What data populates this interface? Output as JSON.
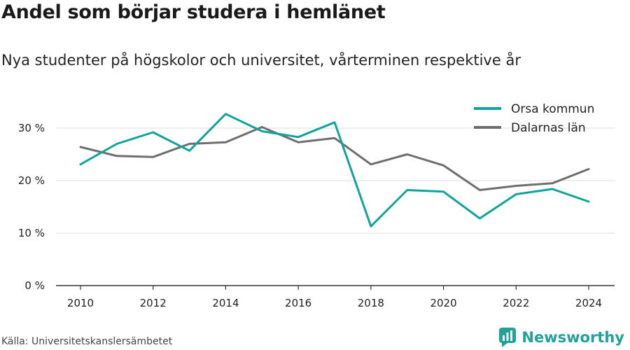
{
  "title": "Andel som börjar studera i hemlänet",
  "subtitle": "Nya studenter på högskolor och universitet, vårterminen respektive år",
  "source": "Källa: Universitetskanslersämbetet",
  "brand": "Newsworthy",
  "chart_data": {
    "type": "line",
    "x": [
      2010,
      2011,
      2012,
      2013,
      2014,
      2015,
      2016,
      2017,
      2018,
      2019,
      2020,
      2021,
      2022,
      2023,
      2024
    ],
    "x_ticks": [
      "2010",
      "2012",
      "2014",
      "2016",
      "2018",
      "2020",
      "2022",
      "2024"
    ],
    "y_ticks": [
      "0 %",
      "10 %",
      "20 %",
      "30 %"
    ],
    "ylim": [
      0,
      35
    ],
    "grid": true,
    "legend_position": "top-right",
    "series": [
      {
        "name": "Orsa kommun",
        "color": "#12a39a",
        "values": [
          23.1,
          27.0,
          29.2,
          25.7,
          32.7,
          29.4,
          28.3,
          31.1,
          11.3,
          18.2,
          17.9,
          12.8,
          17.4,
          18.4,
          16.0
        ]
      },
      {
        "name": "Dalarnas län",
        "color": "#6e6e6e",
        "values": [
          26.4,
          24.7,
          24.5,
          27.0,
          27.3,
          30.2,
          27.3,
          28.1,
          23.1,
          25.0,
          22.9,
          18.2,
          19.0,
          19.5,
          22.2
        ]
      }
    ]
  },
  "colors": {
    "accent": "#22a39a",
    "grid": "#dddddd",
    "axis": "#333333"
  }
}
